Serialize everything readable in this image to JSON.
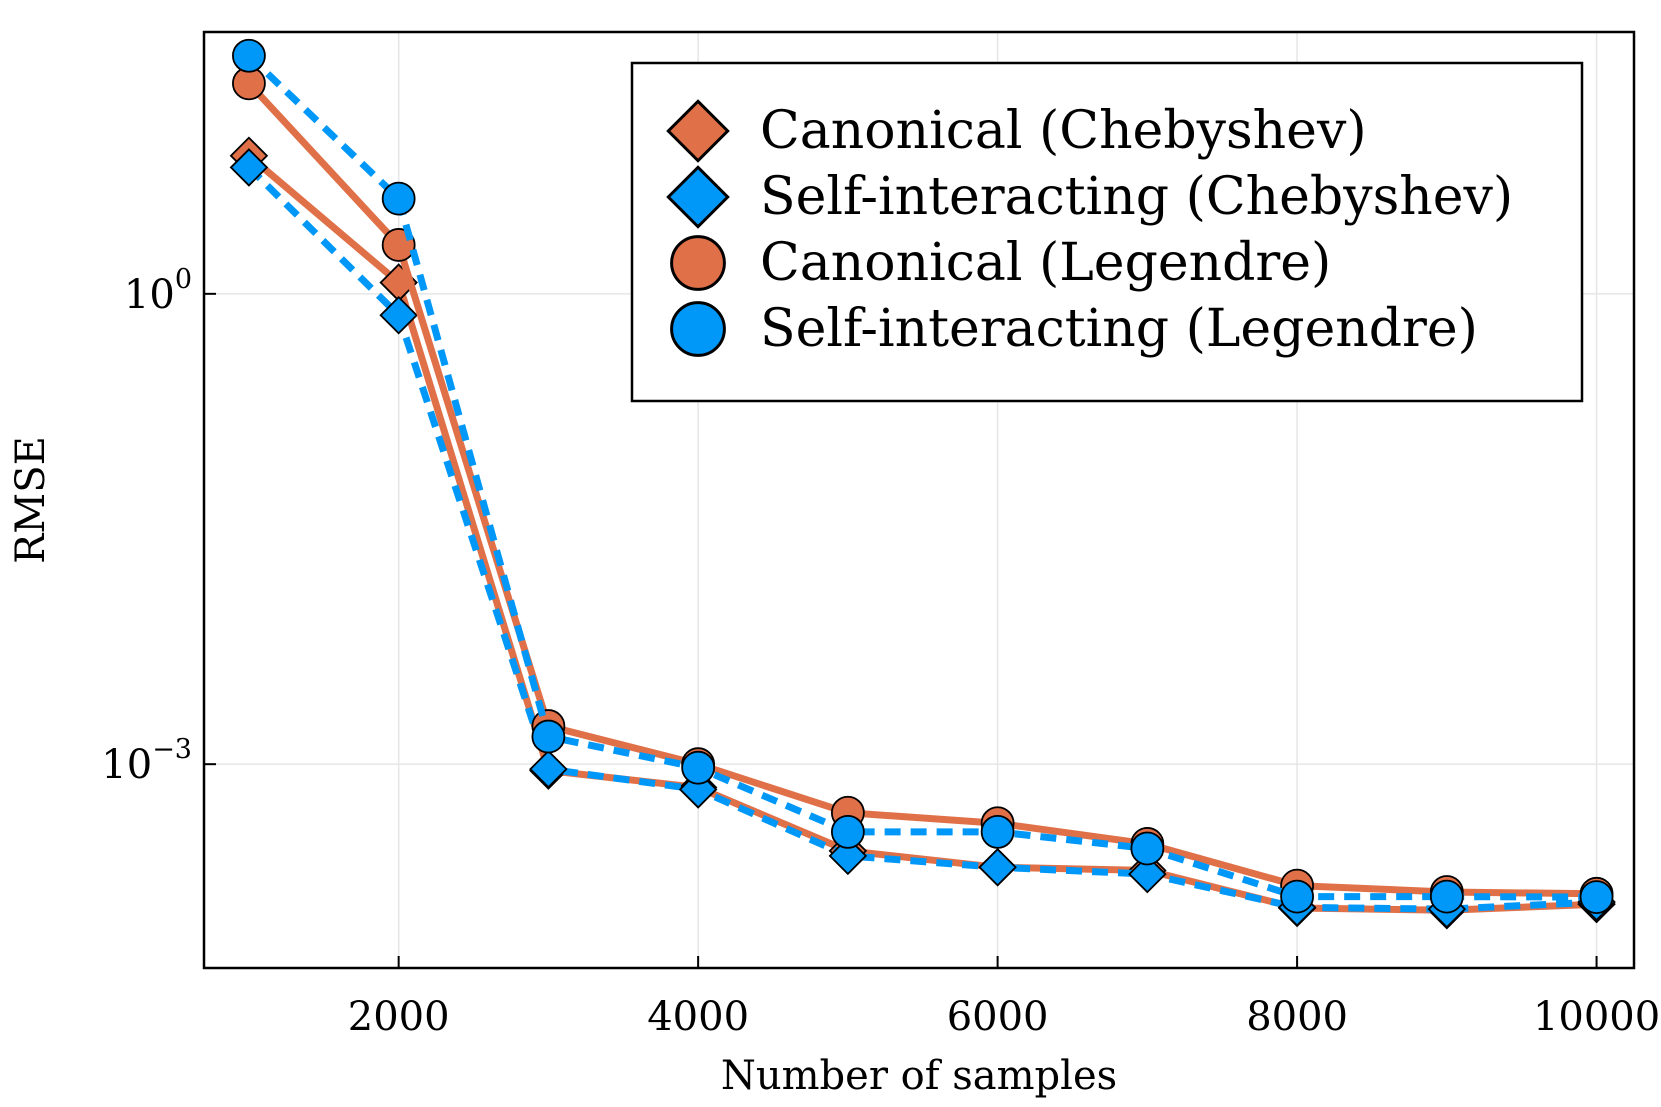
{
  "chart_data": {
    "type": "line",
    "title": "",
    "xlabel": "Number of samples",
    "ylabel": "RMSE",
    "yscale": "log",
    "xlim": [
      700,
      10250
    ],
    "ylim_log10": [
      -4.3,
      1.67
    ],
    "x_ticks": [
      2000,
      4000,
      6000,
      8000,
      10000
    ],
    "x_tick_labels": [
      "2000",
      "4000",
      "6000",
      "8000",
      "10000"
    ],
    "y_ticks": [
      {
        "value_log10": 0,
        "base": "10",
        "exponent": "0"
      },
      {
        "value_log10": -3,
        "base": "10",
        "exponent": "−3"
      }
    ],
    "grid": true,
    "legend_position": "top-right",
    "x": [
      1000,
      2000,
      3000,
      4000,
      5000,
      6000,
      7000,
      8000,
      9000,
      10000
    ],
    "series": [
      {
        "name": "Canonical (Chebyshev)",
        "marker": "diamond",
        "line": "solid",
        "color": "#e07047",
        "values": [
          7.6,
          1.18,
          0.00091,
          0.00071,
          0.00028,
          0.00022,
          0.00021,
          0.000121,
          0.000117,
          0.000128
        ]
      },
      {
        "name": "Self-interacting (Chebyshev)",
        "marker": "diamond",
        "line": "dashed",
        "color": "#0098f8",
        "values": [
          6.4,
          0.73,
          0.00093,
          0.00069,
          0.00026,
          0.00022,
          0.000199,
          0.000122,
          0.000119,
          0.000132
        ]
      },
      {
        "name": "Canonical (Legendre)",
        "marker": "circle",
        "line": "solid",
        "color": "#e07047",
        "values": [
          22,
          2.05,
          0.00175,
          0.001,
          0.00049,
          0.00042,
          0.00031,
          0.000168,
          0.000153,
          0.000149
        ]
      },
      {
        "name": "Self-interacting (Legendre)",
        "marker": "circle",
        "line": "dashed",
        "color": "#0098f8",
        "values": [
          33,
          4.05,
          0.0015,
          0.00095,
          0.00037,
          0.00037,
          0.00029,
          0.000143,
          0.000143,
          0.000142
        ]
      }
    ]
  }
}
